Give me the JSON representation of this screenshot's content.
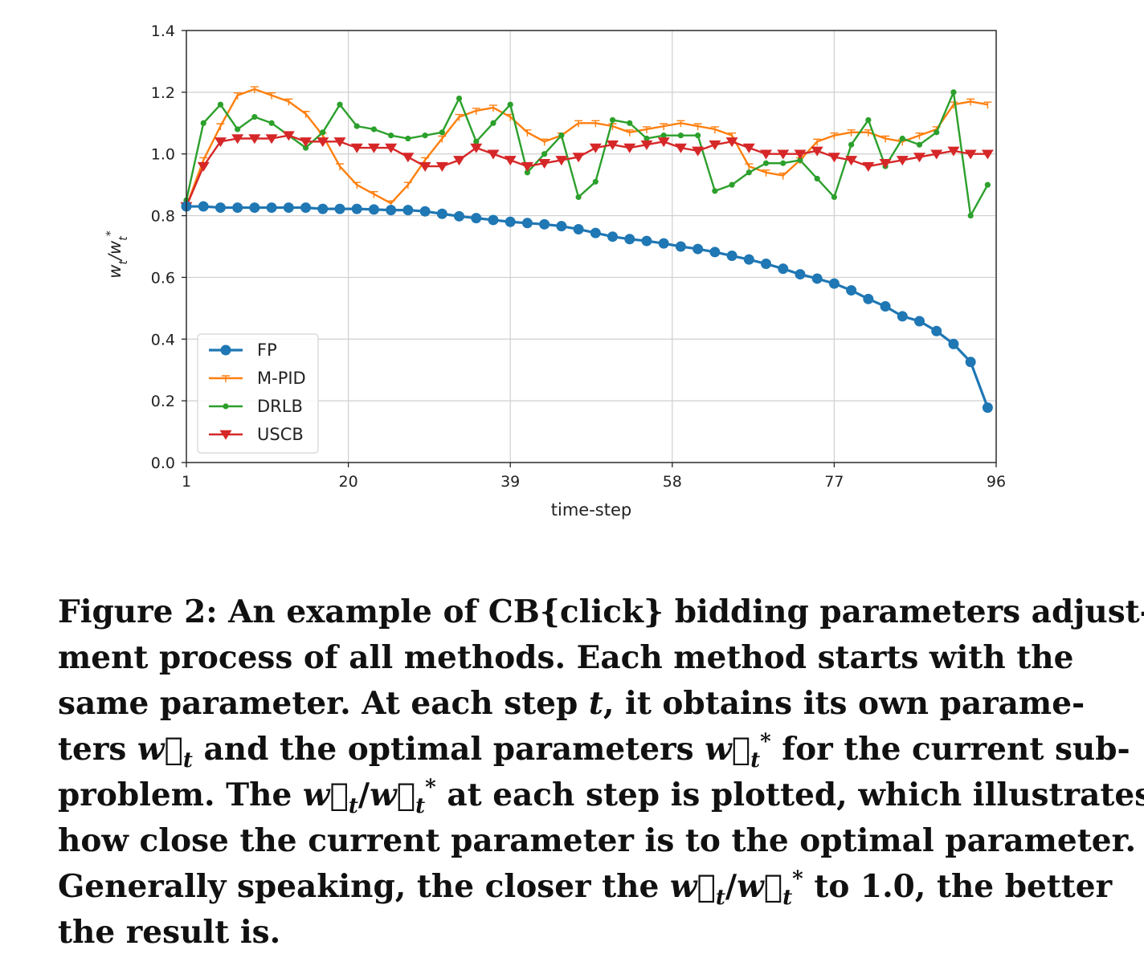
{
  "chart_data": {
    "type": "line",
    "title": "",
    "xlabel": "time-step",
    "ylabel": "w_t/w_t*",
    "ylabel_main": "w",
    "ylabel_sub": "t",
    "ylabel_sep": "/w",
    "ylabel_sub2": "t",
    "ylabel_sup": "*",
    "xlim": [
      1,
      96
    ],
    "ylim": [
      0.0,
      1.4
    ],
    "xticks": [
      "1",
      "20",
      "39",
      "58",
      "77",
      "96"
    ],
    "yticks": [
      "0.0",
      "0.2",
      "0.4",
      "0.6",
      "0.8",
      "1.0",
      "1.2",
      "1.4"
    ],
    "grid": true,
    "legend_position": "lower-left",
    "series": [
      {
        "name": "FP",
        "color": "#1f77b4",
        "marker": "circle",
        "x": [
          1,
          3,
          5,
          7,
          9,
          11,
          13,
          15,
          17,
          19,
          21,
          23,
          25,
          27,
          29,
          31,
          33,
          35,
          37,
          39,
          41,
          43,
          45,
          47,
          49,
          51,
          53,
          55,
          57,
          59,
          61,
          63,
          65,
          67,
          69,
          71,
          73,
          75,
          77,
          79,
          81,
          83,
          85,
          87,
          89,
          91,
          93,
          95
        ],
        "values": [
          0.83,
          0.83,
          0.826,
          0.826,
          0.826,
          0.826,
          0.826,
          0.826,
          0.822,
          0.822,
          0.822,
          0.82,
          0.818,
          0.818,
          0.814,
          0.806,
          0.798,
          0.792,
          0.786,
          0.78,
          0.776,
          0.772,
          0.766,
          0.756,
          0.744,
          0.732,
          0.724,
          0.718,
          0.71,
          0.7,
          0.692,
          0.682,
          0.67,
          0.658,
          0.644,
          0.628,
          0.61,
          0.596,
          0.58,
          0.558,
          0.53,
          0.506,
          0.474,
          0.458,
          0.426,
          0.384,
          0.326,
          0.178
        ]
      },
      {
        "name": "M-PID",
        "color": "#ff7f0e",
        "marker": "tri_down",
        "x": [
          1,
          3,
          5,
          7,
          9,
          11,
          13,
          15,
          17,
          19,
          21,
          23,
          25,
          27,
          29,
          31,
          33,
          35,
          37,
          39,
          41,
          43,
          45,
          47,
          49,
          51,
          53,
          55,
          57,
          59,
          61,
          63,
          65,
          67,
          69,
          71,
          73,
          75,
          77,
          79,
          81,
          83,
          85,
          87,
          89,
          91,
          93,
          95
        ],
        "values": [
          0.83,
          0.98,
          1.09,
          1.19,
          1.21,
          1.19,
          1.17,
          1.13,
          1.06,
          0.96,
          0.9,
          0.87,
          0.84,
          0.9,
          0.98,
          1.05,
          1.12,
          1.14,
          1.15,
          1.12,
          1.07,
          1.04,
          1.06,
          1.1,
          1.1,
          1.09,
          1.07,
          1.08,
          1.09,
          1.1,
          1.09,
          1.08,
          1.06,
          0.96,
          0.94,
          0.93,
          0.98,
          1.04,
          1.06,
          1.07,
          1.07,
          1.05,
          1.04,
          1.06,
          1.08,
          1.16,
          1.17,
          1.16
        ]
      },
      {
        "name": "DRLB",
        "color": "#2ca02c",
        "marker": "point",
        "x": [
          1,
          3,
          5,
          7,
          9,
          11,
          13,
          15,
          17,
          19,
          21,
          23,
          25,
          27,
          29,
          31,
          33,
          35,
          37,
          39,
          41,
          43,
          45,
          47,
          49,
          51,
          53,
          55,
          57,
          59,
          61,
          63,
          65,
          67,
          69,
          71,
          73,
          75,
          77,
          79,
          81,
          83,
          85,
          87,
          89,
          91,
          93,
          95
        ],
        "values": [
          0.85,
          1.1,
          1.16,
          1.08,
          1.12,
          1.1,
          1.06,
          1.02,
          1.07,
          1.16,
          1.09,
          1.08,
          1.06,
          1.05,
          1.06,
          1.07,
          1.18,
          1.04,
          1.1,
          1.16,
          0.94,
          1.0,
          1.06,
          0.86,
          0.91,
          1.11,
          1.1,
          1.05,
          1.06,
          1.06,
          1.06,
          0.88,
          0.9,
          0.94,
          0.97,
          0.97,
          0.98,
          0.92,
          0.86,
          1.03,
          1.11,
          0.96,
          1.05,
          1.03,
          1.07,
          1.2,
          0.8,
          0.9
        ]
      },
      {
        "name": "USCB",
        "color": "#d62728",
        "marker": "tri_down",
        "x": [
          1,
          3,
          5,
          7,
          9,
          11,
          13,
          15,
          17,
          19,
          21,
          23,
          25,
          27,
          29,
          31,
          33,
          35,
          37,
          39,
          41,
          43,
          45,
          47,
          49,
          51,
          53,
          55,
          57,
          59,
          61,
          63,
          65,
          67,
          69,
          71,
          73,
          75,
          77,
          79,
          81,
          83,
          85,
          87,
          89,
          91,
          93,
          95
        ],
        "values": [
          0.83,
          0.96,
          1.04,
          1.05,
          1.05,
          1.05,
          1.06,
          1.04,
          1.04,
          1.04,
          1.02,
          1.02,
          1.02,
          0.99,
          0.96,
          0.96,
          0.98,
          1.02,
          1.0,
          0.98,
          0.96,
          0.97,
          0.98,
          0.99,
          1.02,
          1.03,
          1.02,
          1.03,
          1.04,
          1.02,
          1.01,
          1.03,
          1.04,
          1.02,
          1.0,
          1.0,
          1.0,
          1.01,
          0.99,
          0.98,
          0.96,
          0.97,
          0.98,
          0.99,
          1.0,
          1.01,
          1.0,
          1.0
        ]
      }
    ]
  },
  "caption": {
    "line1_a": "Figure 2: An example of CB{click} bidding parameters adjust-",
    "line2": "ment process of all methods. Each method starts with the",
    "line3_a": "same parameter. At each step ",
    "line3_t": "t",
    "line3_b": ", it obtains its own parame-",
    "line4_a": "ters ",
    "w_vec": "w⃗",
    "sub_t": "t",
    "sup_star": "*",
    "slash": "/",
    "line4_b": " and the optimal parameters ",
    "line4_c": " for the current sub-",
    "line5_a": "problem. The ",
    "line5_b": " at each step is plotted, which illustrates",
    "line6": "how close the current parameter is to the optimal parameter.",
    "line7_a": "Generally speaking, the closer the ",
    "line7_b": " to 1.0, the better",
    "line8": "the result is."
  }
}
